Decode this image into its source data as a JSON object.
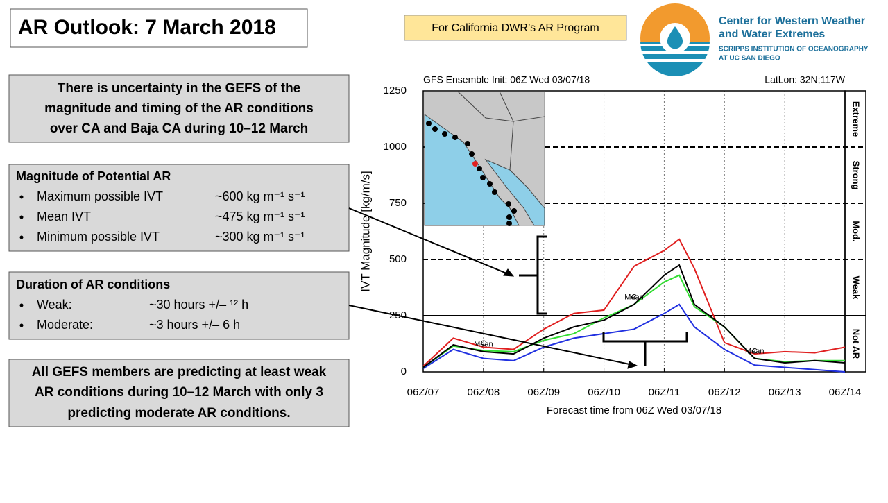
{
  "slide": {
    "title": "AR Outlook: 7 March 2018",
    "tag": "For California DWR’s AR Program",
    "logo": {
      "name": "Center for Western Weather",
      "name2": "and Water Extremes",
      "sub": "SCRIPPS INSTITUTION OF OCEANOGRAPHY",
      "sub2": "AT UC SAN DIEGO"
    },
    "summary": [
      "There is uncertainty in the GEFS of the",
      "magnitude and timing of the AR conditions",
      "over CA and Baja CA during 10–12 March"
    ],
    "magnitude": {
      "heading": "Magnitude of Potential AR",
      "rows": [
        [
          "Maximum possible IVT",
          "~600 kg m⁻¹ s⁻¹"
        ],
        [
          "Mean IVT",
          "~475 kg m⁻¹ s⁻¹"
        ],
        [
          "Minimum possible IVT",
          "~300 kg m⁻¹ s⁻¹"
        ]
      ]
    },
    "duration": {
      "heading": "Duration of AR conditions",
      "rows": [
        [
          "Weak:",
          "~30 hours +/– ¹² h"
        ],
        [
          "Moderate:",
          "~3 hours +/– 6 h"
        ]
      ]
    },
    "conclusion": [
      "All GEFS members are predicting at least weak",
      "AR conditions during 10–12 March with only 3",
      "predicting moderate AR conditions."
    ]
  },
  "chart_data": {
    "type": "line",
    "title": "GFS Ensemble Init: 06Z Wed 03/07/18",
    "subtitle": "LatLon: 32N;117W",
    "y_label": "IVT Magnitude [kg/m/s]",
    "x_label": "Forecast time from 06Z Wed 03/07/18",
    "x": [
      0,
      12,
      24,
      36,
      48,
      60,
      72,
      84,
      96,
      102,
      108,
      120,
      132,
      144,
      156,
      168
    ],
    "series": [
      {
        "color": "#e02020",
        "values": [
          25,
          150,
          110,
          100,
          190,
          260,
          275,
          470,
          540,
          590,
          460,
          130,
          80,
          90,
          85,
          110
        ]
      },
      {
        "color": "#2030e0",
        "values": [
          15,
          100,
          60,
          50,
          110,
          150,
          170,
          190,
          260,
          300,
          200,
          100,
          30,
          20,
          10,
          0
        ]
      },
      {
        "name": "C",
        "color": "#33dd33",
        "values": [
          20,
          115,
          95,
          90,
          140,
          170,
          240,
          300,
          400,
          430,
          290,
          200,
          60,
          45,
          50,
          50
        ]
      },
      {
        "name": "Mean",
        "color": "#000000",
        "values": [
          20,
          120,
          90,
          80,
          150,
          200,
          230,
          300,
          430,
          475,
          300,
          200,
          60,
          40,
          50,
          40
        ]
      }
    ],
    "xlim": [
      0,
      168
    ],
    "xticks": [
      {
        "value": 0,
        "label": "06Z/07"
      },
      {
        "value": 24,
        "label": "06Z/08"
      },
      {
        "value": 48,
        "label": "06Z/09"
      },
      {
        "value": 72,
        "label": "06Z/10"
      },
      {
        "value": 96,
        "label": "06Z/11"
      },
      {
        "value": 120,
        "label": "06Z/12"
      },
      {
        "value": 144,
        "label": "06Z/13"
      },
      {
        "value": 168,
        "label": "06Z/14"
      }
    ],
    "ylim": [
      0,
      1250
    ],
    "yticks": [
      0,
      250,
      500,
      750,
      1000,
      1250
    ],
    "thresholds": [
      250,
      500,
      750,
      1000
    ],
    "bands": [
      "Not AR",
      "Weak",
      "Mod.",
      "Strong",
      "Extreme"
    ]
  }
}
